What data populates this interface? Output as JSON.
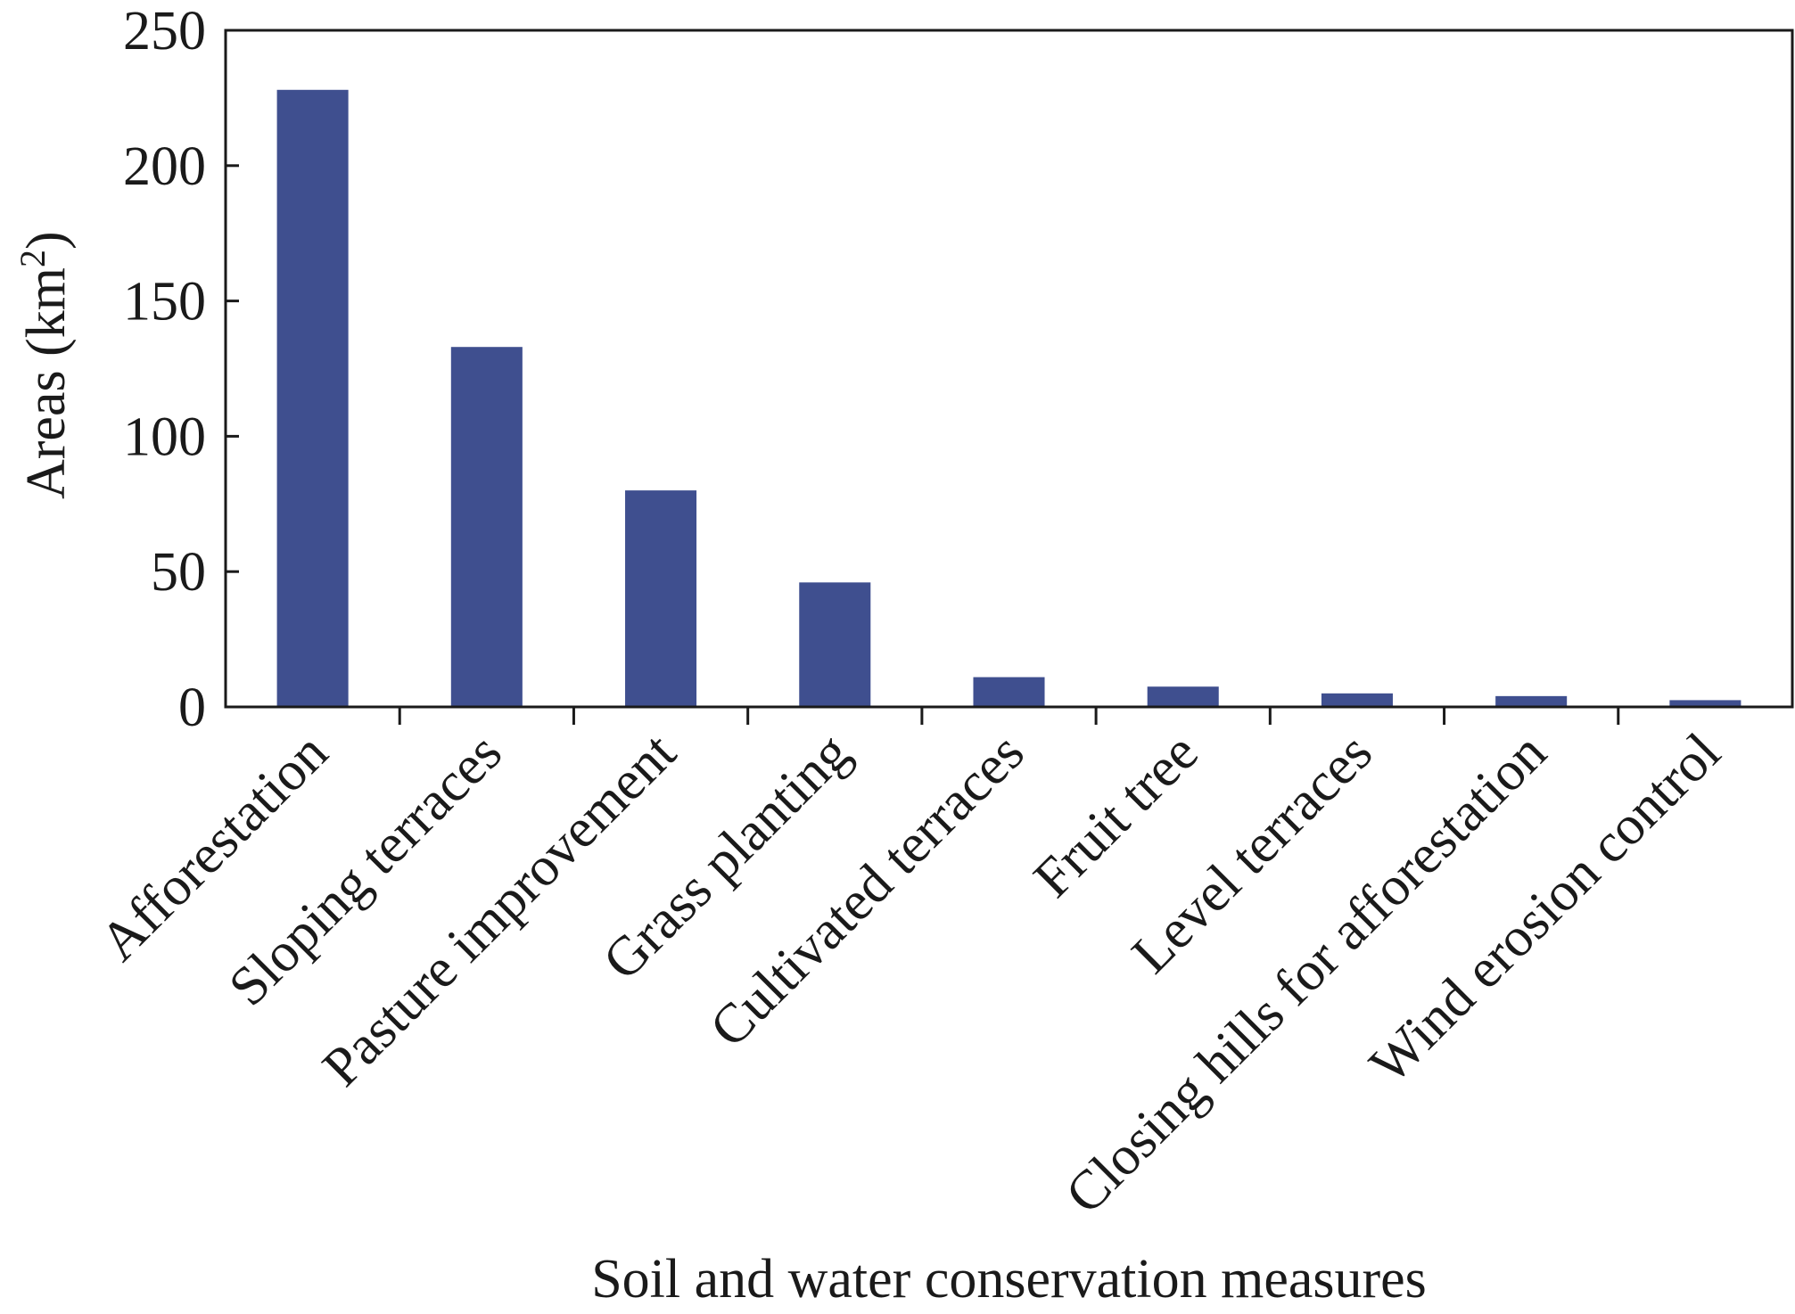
{
  "chart_data": {
    "type": "bar",
    "title": "",
    "xlabel": "Soil and water conservation measures",
    "ylabel_main": "Areas (km",
    "ylabel_sup": "2",
    "ylabel_close": ")",
    "ylim": [
      0,
      250
    ],
    "yticks": [
      0,
      50,
      100,
      150,
      200,
      250
    ],
    "ytick_labels": [
      "0",
      "50",
      "100",
      "150",
      "200",
      "250"
    ],
    "categories": [
      "Afforestation",
      "Sloping terraces",
      "Pasture improvement",
      "Grass planting",
      "Cultivated terraces",
      "Fruit tree",
      "Level terraces",
      "Closing hills for afforestation",
      "Wind erosion control"
    ],
    "values": [
      228,
      133,
      80,
      46,
      11,
      7.5,
      5,
      4,
      2.5
    ],
    "bar_color": "#3f4f8f",
    "grid": false,
    "legend": "none"
  }
}
